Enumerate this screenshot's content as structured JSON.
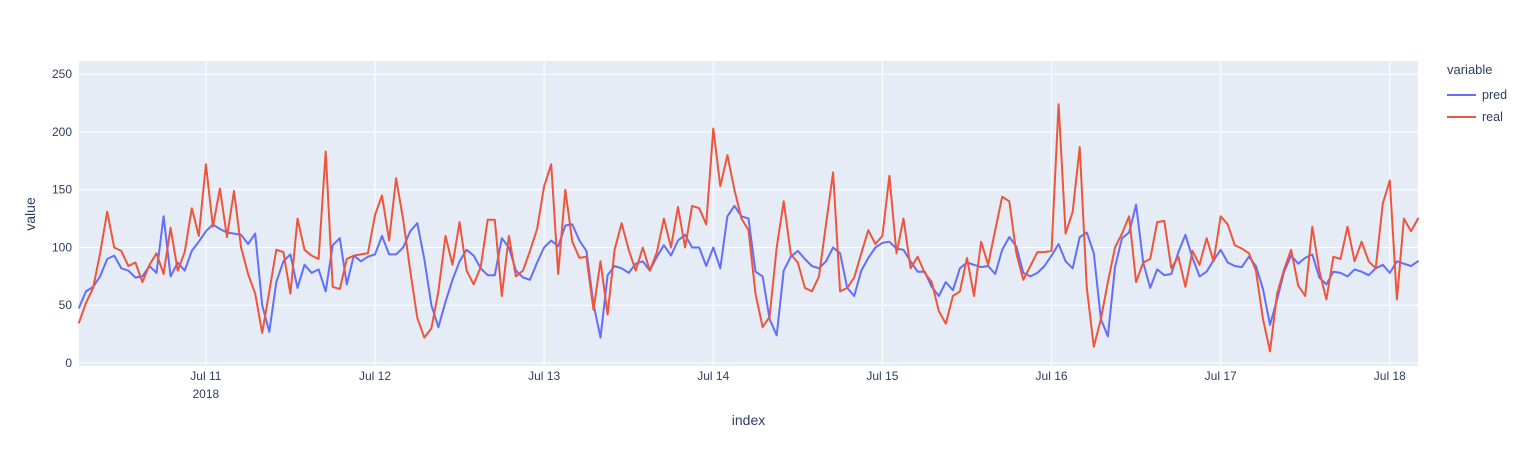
{
  "chart": {
    "xlabel": "index",
    "ylabel": "value",
    "legend_title": "variable",
    "year_label": "2018",
    "colors": {
      "pred": "#636EFA",
      "real": "#EF553B",
      "plot_bg": "#E5ECF6",
      "grid": "#FFFFFF",
      "text": "#2a3f5f"
    }
  },
  "chart_data": {
    "type": "line",
    "title": "",
    "xlabel": "index",
    "ylabel": "value",
    "legend_title": "variable",
    "legend_position": "right",
    "grid": true,
    "x_unit": "hours",
    "x_tick_labels": [
      "Jul 11",
      "Jul 12",
      "Jul 13",
      "Jul 14",
      "Jul 15",
      "Jul 16",
      "Jul 17",
      "Jul 18"
    ],
    "x_tick_indices": [
      18,
      42,
      66,
      90,
      114,
      138,
      162,
      186
    ],
    "x_year_label": "2018",
    "y_ticks": [
      0,
      50,
      100,
      150,
      200,
      250
    ],
    "ylim": [
      -3,
      261
    ],
    "n_points": 191,
    "series": [
      {
        "name": "pred",
        "color": "#636EFA",
        "values": [
          48,
          62,
          66,
          75,
          90,
          93,
          82,
          80,
          74,
          75,
          84,
          78,
          127,
          75,
          87,
          80,
          97,
          105,
          114,
          120,
          116,
          113,
          112,
          111,
          103,
          112,
          50,
          27,
          70,
          88,
          94,
          65,
          85,
          78,
          81,
          62,
          102,
          108,
          68,
          93,
          88,
          92,
          94,
          110,
          94,
          94,
          100,
          114,
          121,
          90,
          50,
          31,
          53,
          72,
          88,
          98,
          93,
          82,
          76,
          76,
          108,
          100,
          80,
          74,
          72,
          87,
          100,
          106,
          101,
          119,
          120,
          106,
          97,
          51,
          22,
          76,
          84,
          82,
          78,
          86,
          88,
          80,
          92,
          102,
          93,
          106,
          111,
          100,
          100,
          84,
          100,
          82,
          127,
          136,
          127,
          125,
          79,
          75,
          38,
          24,
          80,
          92,
          97,
          90,
          84,
          82,
          88,
          100,
          95,
          65,
          58,
          80,
          91,
          100,
          104,
          105,
          99,
          98,
          88,
          79,
          79,
          66,
          58,
          70,
          63,
          82,
          87,
          85,
          83,
          84,
          77,
          98,
          109,
          101,
          78,
          75,
          78,
          84,
          93,
          103,
          88,
          82,
          109,
          113,
          95,
          38,
          23,
          83,
          108,
          113,
          137,
          87,
          65,
          81,
          76,
          77,
          96,
          111,
          91,
          75,
          79,
          89,
          98,
          87,
          84,
          83,
          92,
          84,
          64,
          33,
          55,
          79,
          93,
          86,
          91,
          94,
          74,
          68,
          79,
          78,
          75,
          81,
          79,
          76,
          82,
          85,
          78,
          88,
          86,
          84,
          88
        ]
      },
      {
        "name": "real",
        "color": "#EF553B",
        "values": [
          35,
          52,
          65,
          95,
          131,
          100,
          97,
          84,
          87,
          70,
          85,
          95,
          77,
          117,
          80,
          96,
          134,
          110,
          172,
          118,
          151,
          109,
          149,
          100,
          77,
          60,
          26,
          62,
          98,
          96,
          60,
          125,
          98,
          93,
          90,
          183,
          66,
          64,
          90,
          93,
          94,
          95,
          128,
          145,
          106,
          160,
          124,
          80,
          39,
          22,
          30,
          62,
          110,
          85,
          122,
          80,
          68,
          83,
          124,
          124,
          58,
          110,
          75,
          80,
          97,
          116,
          153,
          172,
          77,
          150,
          105,
          91,
          92,
          46,
          88,
          42,
          98,
          121,
          98,
          80,
          100,
          80,
          96,
          125,
          100,
          135,
          100,
          136,
          134,
          120,
          203,
          153,
          180,
          150,
          125,
          115,
          60,
          31,
          40,
          100,
          140,
          94,
          87,
          65,
          62,
          75,
          120,
          165,
          62,
          65,
          74,
          95,
          115,
          103,
          110,
          162,
          95,
          125,
          82,
          92,
          78,
          70,
          45,
          34,
          58,
          62,
          91,
          58,
          105,
          85,
          115,
          144,
          140,
          95,
          72,
          84,
          96,
          96,
          97,
          224,
          112,
          131,
          187,
          65,
          14,
          38,
          70,
          100,
          112,
          127,
          70,
          87,
          90,
          122,
          123,
          82,
          92,
          66,
          97,
          85,
          108,
          88,
          127,
          120,
          102,
          99,
          95,
          80,
          38,
          10,
          60,
          81,
          98,
          67,
          58,
          118,
          80,
          55,
          92,
          90,
          118,
          88,
          105,
          88,
          82,
          138,
          158,
          55,
          125,
          114,
          125
        ]
      }
    ]
  }
}
